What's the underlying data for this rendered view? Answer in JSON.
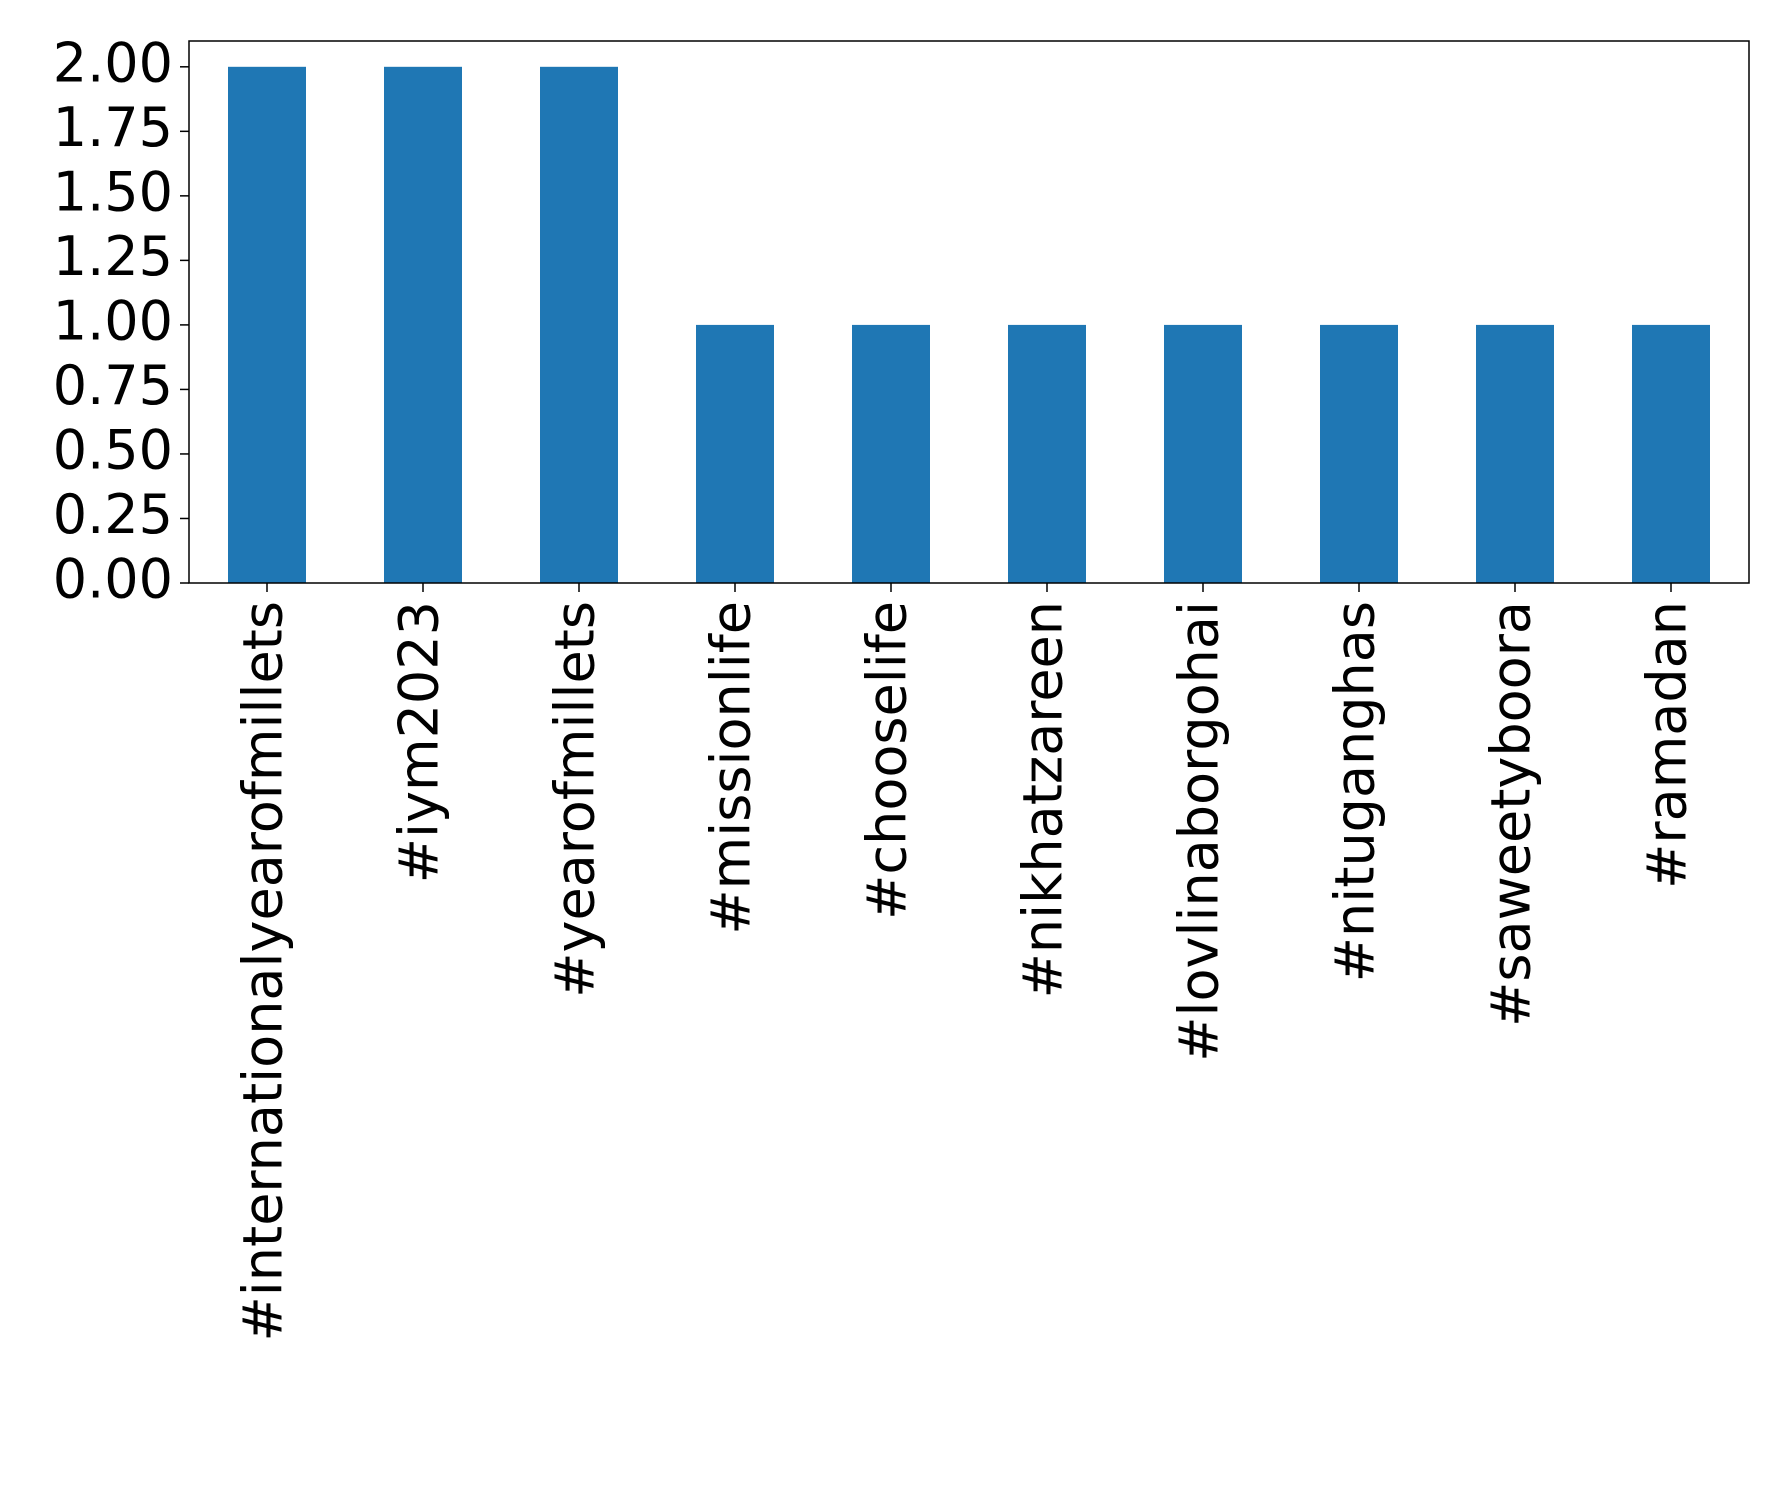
{
  "chart_data": {
    "type": "bar",
    "categories": [
      "#internationalyearofmillets",
      "#iym2023",
      "#yearofmillets",
      "#missionlife",
      "#chooselife",
      "#nikhatzareen",
      "#lovlinaborgohai",
      "#nituganghas",
      "#saweetyboora",
      "#ramadan"
    ],
    "values": [
      2,
      2,
      2,
      1,
      1,
      1,
      1,
      1,
      1,
      1
    ],
    "color": "#1f77b4",
    "ylim": [
      0,
      2.1
    ],
    "yticks": [
      {
        "value": 0,
        "label": "0.00"
      },
      {
        "value": 0.25,
        "label": "0.25"
      },
      {
        "value": 0.5,
        "label": "0.50"
      },
      {
        "value": 0.75,
        "label": "0.75"
      },
      {
        "value": 1,
        "label": "1.00"
      },
      {
        "value": 1.25,
        "label": "1.25"
      },
      {
        "value": 1.5,
        "label": "1.50"
      },
      {
        "value": 1.75,
        "label": "1.75"
      },
      {
        "value": 2,
        "label": "2.00"
      }
    ],
    "grid": false
  }
}
